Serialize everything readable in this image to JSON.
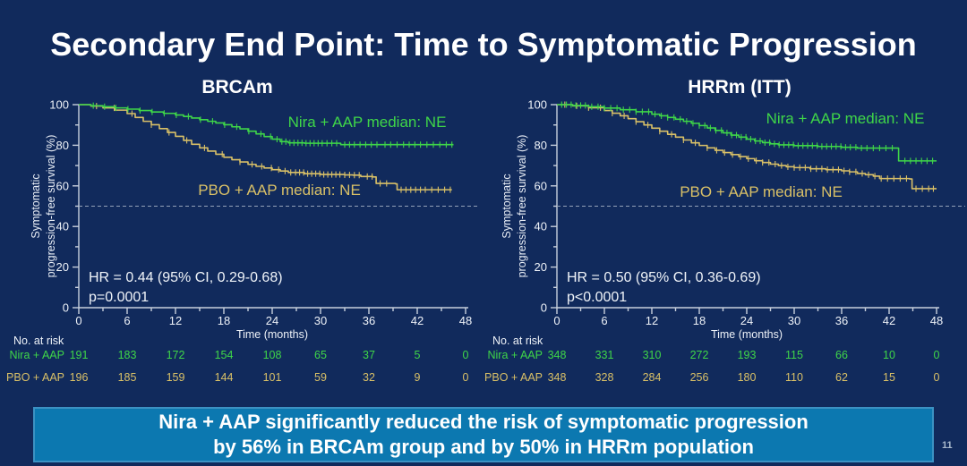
{
  "title": "Secondary End Point: Time to Symptomatic Progression",
  "page_number": "11",
  "banner": {
    "line1": "Nira + AAP significantly reduced the risk of symptomatic progression",
    "line2": "by 56% in BRCAm group and by 50% in HRRm population"
  },
  "colors": {
    "background": "#112a5c",
    "banner_fill": "#0c78b0",
    "banner_border": "#3c92c3",
    "nira_green": "#3fd648",
    "pbo_gold": "#d9c067",
    "axis": "#c7cfdc",
    "reference_dash": "#93a1b8",
    "text_white": "#f0f4f9"
  },
  "chart_data": [
    {
      "type": "line",
      "subtype": "kaplan-meier-step",
      "title": "BRCAm",
      "xlabel": "Time (months)",
      "ylabel": "Symptomatic progression-free survival (%)",
      "ylabel_lines": [
        "Symptomatic",
        "progression-free survival (%)"
      ],
      "xlim": [
        0,
        48
      ],
      "ylim": [
        0,
        100
      ],
      "xticks": [
        0,
        6,
        12,
        18,
        24,
        30,
        36,
        42,
        48
      ],
      "yticks": [
        0,
        20,
        40,
        60,
        80,
        100
      ],
      "reference_line_y": 50,
      "annotation": {
        "hr": "HR = 0.44 (95% CI, 0.29-0.68)",
        "p": "p=0.0001"
      },
      "series": [
        {
          "name": "Nira + AAP",
          "curve_label": "Nira + AAP median: NE",
          "color": "#3fd648",
          "points": [
            [
              0,
              100
            ],
            [
              1.5,
              99.5
            ],
            [
              3,
              99
            ],
            [
              4.5,
              98.4
            ],
            [
              6,
              97.8
            ],
            [
              7.5,
              97.1
            ],
            [
              9,
              96.4
            ],
            [
              10.5,
              95.7
            ],
            [
              12,
              94.9
            ],
            [
              13,
              94.2
            ],
            [
              14,
              93.4
            ],
            [
              15,
              92.6
            ],
            [
              16,
              91.8
            ],
            [
              17,
              91
            ],
            [
              18,
              90.1
            ],
            [
              19,
              89.1
            ],
            [
              20,
              88.1
            ],
            [
              21,
              86.9
            ],
            [
              22,
              85.6
            ],
            [
              23,
              84.3
            ],
            [
              24,
              83
            ],
            [
              25,
              81.8
            ],
            [
              26,
              81.2
            ],
            [
              28,
              81
            ],
            [
              32,
              81
            ],
            [
              32.5,
              80.3
            ],
            [
              46.5,
              80.3
            ]
          ],
          "censor_months": [
            1.8,
            3.2,
            4.6,
            6.1,
            7.6,
            9.1,
            10.6,
            12.1,
            13.6,
            15.1,
            16.6,
            18.1,
            19.6,
            21.1,
            22.6,
            23.8,
            24.6,
            25.2,
            25.7,
            26.2,
            26.7,
            27.2,
            27.7,
            28.2,
            28.7,
            29.2,
            29.7,
            30.2,
            30.8,
            31.4,
            32,
            33,
            33.6,
            34.2,
            34.9,
            35.6,
            36.3,
            37,
            38,
            38.7,
            39.5,
            40.3,
            41,
            41.7,
            42.4,
            43.2,
            44,
            44.8,
            45.6,
            46.3
          ]
        },
        {
          "name": "PBO + AAP",
          "curve_label": "PBO + AAP median: NE",
          "color": "#d9c067",
          "points": [
            [
              0,
              100
            ],
            [
              1.5,
              99.3
            ],
            [
              3,
              98.4
            ],
            [
              4.5,
              97.3
            ],
            [
              6,
              95.6
            ],
            [
              7,
              93.7
            ],
            [
              8,
              91.8
            ],
            [
              9,
              90.1
            ],
            [
              10,
              88.2
            ],
            [
              11,
              86.3
            ],
            [
              12,
              84.4
            ],
            [
              13,
              82.4
            ],
            [
              14,
              80.5
            ],
            [
              15,
              78.7
            ],
            [
              16,
              77.1
            ],
            [
              17,
              75.6
            ],
            [
              18,
              74.1
            ],
            [
              19,
              72.9
            ],
            [
              20,
              71.8
            ],
            [
              21,
              70.6
            ],
            [
              22,
              69.6
            ],
            [
              23,
              68.8
            ],
            [
              24,
              68
            ],
            [
              25,
              67.3
            ],
            [
              26,
              66.6
            ],
            [
              28,
              66
            ],
            [
              30,
              65.6
            ],
            [
              33,
              65.4
            ],
            [
              34,
              65.3
            ],
            [
              35,
              64.6
            ],
            [
              36.5,
              64.4
            ],
            [
              36.9,
              61.2
            ],
            [
              39.3,
              61
            ],
            [
              39.5,
              58.1
            ],
            [
              46.3,
              58.1
            ]
          ],
          "censor_months": [
            2.2,
            4.4,
            6.6,
            9,
            11.2,
            13.4,
            15.6,
            17.8,
            20,
            21.5,
            22.7,
            23.9,
            24.8,
            25.6,
            26.3,
            26.9,
            27.4,
            27.9,
            28.4,
            28.9,
            29.4,
            29.9,
            30.4,
            30.9,
            31.4,
            31.9,
            32.4,
            33,
            33.6,
            34.2,
            34.8,
            35.8,
            36.4,
            37.4,
            38.2,
            40,
            40.6,
            41.2,
            41.8,
            42.4,
            43,
            43.8,
            44.6,
            45.4,
            46.1
          ]
        }
      ],
      "risk_table": {
        "heading": "No. at risk",
        "time_points": [
          0,
          6,
          12,
          18,
          24,
          30,
          36,
          42,
          48
        ],
        "rows": [
          {
            "name": "Nira + AAP",
            "color": "#3fd648",
            "values": [
              191,
              183,
              172,
              154,
              108,
              65,
              37,
              5,
              0
            ]
          },
          {
            "name": "PBO + AAP",
            "color": "#d9c067",
            "values": [
              196,
              185,
              159,
              144,
              101,
              59,
              32,
              9,
              0
            ]
          }
        ]
      }
    },
    {
      "type": "line",
      "subtype": "kaplan-meier-step",
      "title": "HRRm (ITT)",
      "xlabel": "Time (months)",
      "ylabel": "Symptomatic progression-free survival (%)",
      "ylabel_lines": [
        "Symptomatic",
        "progression-free survival (%)"
      ],
      "xlim": [
        0,
        48
      ],
      "ylim": [
        0,
        100
      ],
      "xticks": [
        0,
        6,
        12,
        18,
        24,
        30,
        36,
        42,
        48
      ],
      "yticks": [
        0,
        20,
        40,
        60,
        80,
        100
      ],
      "reference_line_y": 50,
      "annotation": {
        "hr": "HR = 0.50 (95% CI, 0.36-0.69)",
        "p": "p<0.0001"
      },
      "series": [
        {
          "name": "Nira + AAP",
          "curve_label": "Nira + AAP median: NE",
          "color": "#3fd648",
          "points": [
            [
              0,
              100
            ],
            [
              2,
              99.6
            ],
            [
              4,
              99
            ],
            [
              6,
              98.3
            ],
            [
              8,
              97.5
            ],
            [
              10,
              96.5
            ],
            [
              12,
              95.3
            ],
            [
              13,
              94.5
            ],
            [
              14,
              93.7
            ],
            [
              15,
              92.8
            ],
            [
              16,
              91.8
            ],
            [
              17,
              90.8
            ],
            [
              18,
              89.7
            ],
            [
              19,
              88.5
            ],
            [
              20,
              87.3
            ],
            [
              21,
              86.1
            ],
            [
              22,
              85
            ],
            [
              23,
              84
            ],
            [
              24,
              83
            ],
            [
              25,
              82.1
            ],
            [
              26,
              81.3
            ],
            [
              27,
              80.7
            ],
            [
              28,
              80.2
            ],
            [
              30,
              79.8
            ],
            [
              33,
              79.4
            ],
            [
              36,
              79
            ],
            [
              38,
              78.6
            ],
            [
              43,
              78.6
            ],
            [
              43.2,
              72.3
            ],
            [
              48,
              72.3
            ]
          ],
          "censor_months": [
            0.6,
            1.2,
            1.8,
            2.4,
            3,
            3.6,
            4.4,
            5.2,
            6,
            6.8,
            7.6,
            8.4,
            9.2,
            10,
            10.8,
            11.6,
            12.4,
            13.2,
            14,
            14.8,
            15.6,
            16.4,
            17.2,
            18,
            18.7,
            19.4,
            20.1,
            20.8,
            21.5,
            22.1,
            22.7,
            23.3,
            23.9,
            24.5,
            25.1,
            25.7,
            26.3,
            26.9,
            27.5,
            28.1,
            28.7,
            29.3,
            29.9,
            30.5,
            31.1,
            31.7,
            32.3,
            32.9,
            33.5,
            34.1,
            34.7,
            35.3,
            35.9,
            36.5,
            37.1,
            37.8,
            38.5,
            39.2,
            40,
            40.8,
            41.6,
            42.4,
            44,
            44.7,
            45.4,
            46.1,
            46.8,
            47.5
          ]
        },
        {
          "name": "PBO + AAP",
          "curve_label": "PBO + AAP median: NE",
          "color": "#d9c067",
          "points": [
            [
              0,
              100
            ],
            [
              2,
              99.4
            ],
            [
              4,
              98.5
            ],
            [
              6,
              97.1
            ],
            [
              7,
              95.8
            ],
            [
              8,
              94.5
            ],
            [
              9,
              93.1
            ],
            [
              10,
              91.6
            ],
            [
              11,
              90
            ],
            [
              12,
              88.4
            ],
            [
              13,
              86.9
            ],
            [
              14,
              85.4
            ],
            [
              15,
              84
            ],
            [
              16,
              82.6
            ],
            [
              17,
              81.2
            ],
            [
              18,
              79.9
            ],
            [
              19,
              78.7
            ],
            [
              20,
              77.5
            ],
            [
              21,
              76.4
            ],
            [
              22,
              75.4
            ],
            [
              23,
              74.4
            ],
            [
              24,
              73.4
            ],
            [
              25,
              72.4
            ],
            [
              26,
              71.5
            ],
            [
              27,
              70.7
            ],
            [
              28,
              70
            ],
            [
              29,
              69.4
            ],
            [
              30,
              69
            ],
            [
              32,
              68.4
            ],
            [
              34,
              68
            ],
            [
              36,
              67.4
            ],
            [
              37,
              66.9
            ],
            [
              38,
              66.1
            ],
            [
              39,
              65.5
            ],
            [
              40,
              64.8
            ],
            [
              40.8,
              63.6
            ],
            [
              44.6,
              63.4
            ],
            [
              44.9,
              58.6
            ],
            [
              48,
              58.6
            ]
          ],
          "censor_months": [
            1,
            2.5,
            4,
            5.5,
            7,
            8.5,
            10,
            11.5,
            13,
            14.5,
            16,
            17.5,
            19,
            20.2,
            21.2,
            22.2,
            23.2,
            24.2,
            25.2,
            26,
            26.8,
            27.6,
            28.4,
            29.2,
            30,
            30.7,
            31.4,
            32.1,
            32.8,
            33.5,
            34.2,
            34.9,
            35.6,
            36.3,
            37,
            37.8,
            38.6,
            39.4,
            40.2,
            41,
            41.8,
            42.6,
            43.4,
            44.2,
            45.4,
            46.2,
            47,
            47.6
          ]
        }
      ],
      "risk_table": {
        "heading": "No. at risk",
        "time_points": [
          0,
          6,
          12,
          18,
          24,
          30,
          36,
          42,
          48
        ],
        "rows": [
          {
            "name": "Nira + AAP",
            "color": "#3fd648",
            "values": [
              348,
              331,
              310,
              272,
              193,
              115,
              66,
              10,
              0
            ]
          },
          {
            "name": "PBO + AAP",
            "color": "#d9c067",
            "values": [
              348,
              328,
              284,
              256,
              180,
              110,
              62,
              15,
              0
            ]
          }
        ]
      }
    }
  ]
}
